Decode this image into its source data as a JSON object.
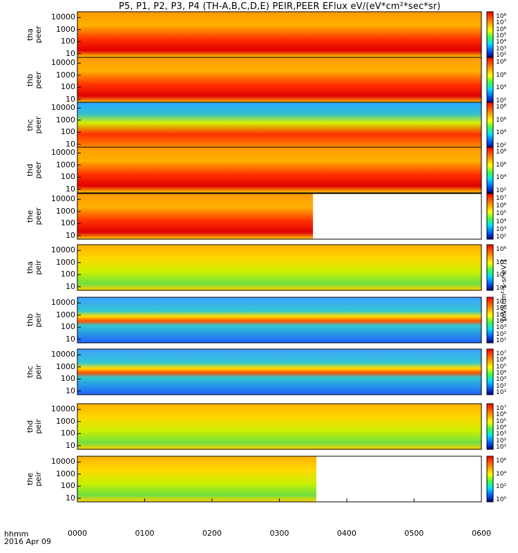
{
  "title": "P5, P1, P2, P3, P4 (TH-A,B,C,D,E) PEIR,PEER EFlux eV/(eV*cm²*sec*sr)",
  "x_axis": {
    "label_line1": "hhmm",
    "label_line2": "2016 Apr 09",
    "ticks": [
      "0000",
      "0100",
      "0200",
      "0300",
      "0400",
      "0500",
      "0600"
    ]
  },
  "colorbar_title": "[eV/(cm²-s-sr-eV)]",
  "colors": {
    "high": "#ff0000",
    "mid": "#ffff00",
    "low": "#00cc66",
    "lowest": "#0000aa"
  },
  "chart_data": {
    "type": "heatmap",
    "x_range_hours": [
      0,
      6
    ],
    "y_scale": "log",
    "y_range_eV": [
      5,
      30000
    ],
    "panels": [
      {
        "label_1": "tha",
        "label_2": "peer",
        "y_ticks": [
          "10000",
          "1000",
          "100",
          "10"
        ],
        "cbar_ticks": [
          "10⁸",
          "10⁷",
          "10⁶",
          "10⁵",
          "10⁴",
          "10³",
          "10²"
        ],
        "data_end_hour": 6.0
      },
      {
        "label_1": "thb",
        "label_2": "peer",
        "y_ticks": [
          "10000",
          "1000",
          "100",
          "10"
        ],
        "cbar_ticks": [
          "10⁸",
          "10⁶",
          "10⁴",
          "10²"
        ],
        "data_end_hour": 6.0
      },
      {
        "label_1": "thc",
        "label_2": "peer",
        "y_ticks": [
          "10000",
          "1000",
          "100",
          "10"
        ],
        "cbar_ticks": [
          "10⁸",
          "10⁶",
          "10⁴",
          "10²"
        ],
        "data_end_hour": 6.0
      },
      {
        "label_1": "thd",
        "label_2": "peer",
        "y_ticks": [
          "10000",
          "1000",
          "100",
          "10"
        ],
        "cbar_ticks": [
          "10⁸",
          "10⁶",
          "10⁴",
          "10²"
        ],
        "data_end_hour": 6.0
      },
      {
        "label_1": "the",
        "label_2": "peer",
        "y_ticks": [
          "10000",
          "1000",
          "100",
          "10"
        ],
        "cbar_ticks": [
          "10⁷",
          "10⁶",
          "10⁵",
          "10⁴",
          "10³",
          "10²"
        ],
        "data_end_hour": 3.5
      },
      {
        "label_1": "tha",
        "label_2": "peir",
        "y_ticks": [
          "10000",
          "1000",
          "100",
          "10"
        ],
        "cbar_ticks": [
          "10⁶",
          "10⁴",
          "10²",
          "10⁰"
        ],
        "data_end_hour": 6.0
      },
      {
        "label_1": "thb",
        "label_2": "peir",
        "y_ticks": [
          "10000",
          "1000",
          "100",
          "10"
        ],
        "cbar_ticks": [
          "10⁷",
          "10⁶",
          "10⁵",
          "10⁴",
          "10³",
          "10²",
          "10¹"
        ],
        "data_end_hour": 6.0
      },
      {
        "label_1": "thc",
        "label_2": "peir",
        "y_ticks": [
          "10000",
          "1000",
          "100",
          "10"
        ],
        "cbar_ticks": [
          "10⁷",
          "10⁶",
          "10⁵",
          "10⁴",
          "10³",
          "10²",
          "10¹"
        ],
        "data_end_hour": 6.0
      },
      {
        "label_1": "thd",
        "label_2": "peir",
        "y_ticks": [
          "10000",
          "1000",
          "100",
          "10"
        ],
        "cbar_ticks": [
          "10⁷",
          "10⁶",
          "10⁵",
          "10⁴",
          "10³",
          "10²",
          "10¹"
        ],
        "data_end_hour": 6.0
      },
      {
        "label_1": "the",
        "label_2": "peir",
        "y_ticks": [
          "10000",
          "1000",
          "100",
          "10"
        ],
        "cbar_ticks": [
          "10⁶",
          "10⁴",
          "10²",
          "10⁰"
        ],
        "data_end_hour": 3.55
      }
    ]
  }
}
